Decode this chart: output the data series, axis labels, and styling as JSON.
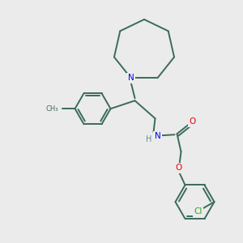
{
  "bg_color": "#ebebeb",
  "bond_color": "#3a6b5a",
  "bond_width": 1.4,
  "atom_colors": {
    "N": "#0000ee",
    "O": "#ee0000",
    "Cl": "#22aa22",
    "C": "#3a6b5a",
    "H": "#5a9090"
  }
}
